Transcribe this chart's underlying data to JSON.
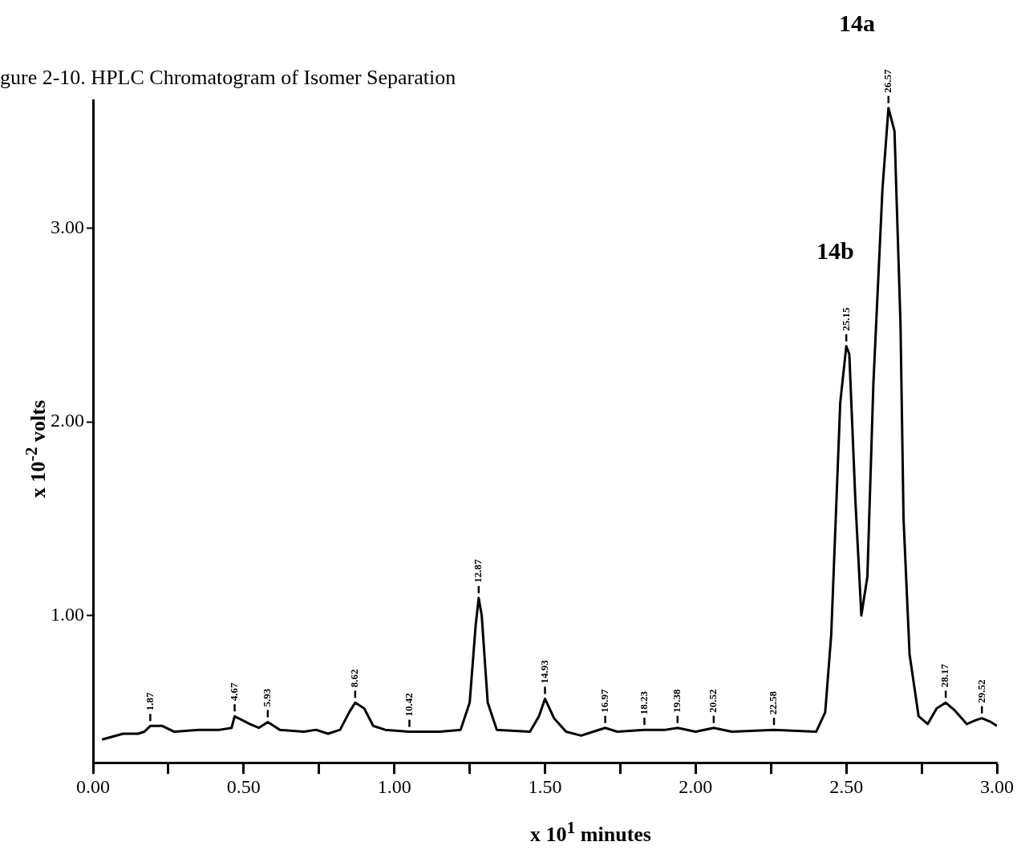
{
  "chart_data": {
    "type": "line",
    "title": "gure 2-10. HPLC Chromatogram of Isomer Separation",
    "xlabel": "x 10$^{1}$ minutes",
    "ylabel": "x 10$^{-2}$ volts",
    "xlim": [
      0,
      3.0
    ],
    "ylim": [
      0.24,
      3.66
    ],
    "xticks": [
      {
        "value": 0,
        "label": "0.00"
      },
      {
        "value": 0.25,
        "label": null
      },
      {
        "value": 0.5,
        "label": "0.50"
      },
      {
        "value": 0.75,
        "label": null
      },
      {
        "value": 1.0,
        "label": "1.00"
      },
      {
        "value": 1.25,
        "label": null
      },
      {
        "value": 1.5,
        "label": "1.50"
      },
      {
        "value": 1.75,
        "label": null
      },
      {
        "value": 2.0,
        "label": "2.00"
      },
      {
        "value": 2.25,
        "label": null
      },
      {
        "value": 2.5,
        "label": "2.50"
      },
      {
        "value": 2.75,
        "label": null
      },
      {
        "value": 3.0,
        "label": "3.00"
      }
    ],
    "yticks": [
      {
        "value": 1,
        "label": "1.00"
      },
      {
        "value": 2,
        "label": "2.00"
      },
      {
        "value": 3,
        "label": "3.00"
      }
    ],
    "grid": false,
    "legend": false,
    "marker": "none",
    "line_style": "solid",
    "series": [
      {
        "color": "#000000",
        "x": [
          0.03,
          0.1,
          0.15,
          0.17,
          0.19,
          0.23,
          0.27,
          0.35,
          0.42,
          0.46,
          0.47,
          0.52,
          0.55,
          0.58,
          0.62,
          0.7,
          0.74,
          0.78,
          0.82,
          0.85,
          0.87,
          0.9,
          0.93,
          0.97,
          1.05,
          1.15,
          1.22,
          1.25,
          1.27,
          1.28,
          1.29,
          1.31,
          1.34,
          1.45,
          1.48,
          1.5,
          1.53,
          1.57,
          1.62,
          1.66,
          1.7,
          1.74,
          1.83,
          1.9,
          1.94,
          2.0,
          2.06,
          2.12,
          2.26,
          2.4,
          2.43,
          2.45,
          2.47,
          2.48,
          2.5,
          2.51,
          2.53,
          2.55,
          2.57,
          2.59,
          2.62,
          2.64,
          2.66,
          2.68,
          2.69,
          2.71,
          2.74,
          2.77,
          2.8,
          2.83,
          2.86,
          2.9,
          2.93,
          2.95,
          2.98,
          3.0
        ],
        "values": [
          0.36,
          0.39,
          0.39,
          0.4,
          0.43,
          0.43,
          0.4,
          0.41,
          0.41,
          0.42,
          0.48,
          0.44,
          0.42,
          0.45,
          0.41,
          0.4,
          0.41,
          0.39,
          0.41,
          0.5,
          0.55,
          0.52,
          0.43,
          0.41,
          0.4,
          0.4,
          0.41,
          0.55,
          0.95,
          1.09,
          1.0,
          0.55,
          0.41,
          0.4,
          0.48,
          0.57,
          0.47,
          0.4,
          0.38,
          0.4,
          0.42,
          0.4,
          0.41,
          0.41,
          0.42,
          0.4,
          0.42,
          0.4,
          0.41,
          0.4,
          0.5,
          0.9,
          1.7,
          2.1,
          2.39,
          2.35,
          1.6,
          1.0,
          1.2,
          2.2,
          3.2,
          3.62,
          3.5,
          2.5,
          1.5,
          0.8,
          0.48,
          0.44,
          0.52,
          0.55,
          0.51,
          0.44,
          0.46,
          0.47,
          0.45,
          0.43
        ],
        "name": null
      }
    ],
    "annotations": [
      "14b",
      "14a",
      {
        "text": "1.87",
        "x": 0.19,
        "y": 0.43
      },
      {
        "text": "4.67",
        "x": 0.47,
        "y": 0.48
      },
      {
        "text": "5.93",
        "x": 0.58,
        "y": 0.45
      },
      {
        "text": "8.62",
        "x": 0.87,
        "y": 0.55
      },
      {
        "text": "10.42",
        "x": 1.05,
        "y": 0.4
      },
      {
        "text": "12.87",
        "x": 1.28,
        "y": 1.09
      },
      {
        "text": "14.93",
        "x": 1.5,
        "y": 0.57
      },
      {
        "text": "16.97",
        "x": 1.7,
        "y": 0.42
      },
      {
        "text": "18.23",
        "x": 1.83,
        "y": 0.41
      },
      {
        "text": "19.38",
        "x": 1.94,
        "y": 0.42
      },
      {
        "text": "20.52",
        "x": 2.06,
        "y": 0.42
      },
      {
        "text": "22.58",
        "x": 2.26,
        "y": 0.41
      },
      {
        "text": "25.15",
        "x": 2.5,
        "y": 2.39
      },
      {
        "text": "26.57",
        "x": 2.64,
        "y": 3.62
      },
      {
        "text": "28.17",
        "x": 2.83,
        "y": 0.55
      },
      {
        "text": "29.52",
        "x": 2.95,
        "y": 0.47
      }
    ]
  }
}
